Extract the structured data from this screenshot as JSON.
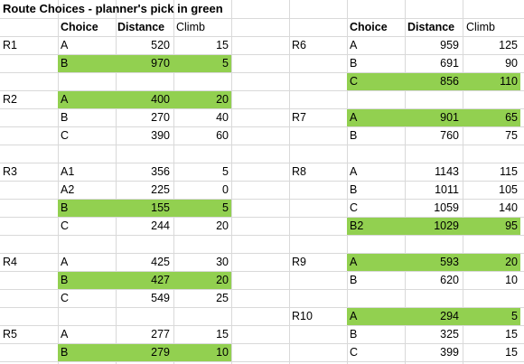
{
  "title": "Route Choices - planner's pick in green",
  "headers": {
    "choice": "Choice",
    "distance": "Distance",
    "climb": "Climb"
  },
  "highlight_color": "#92d050",
  "left_routes": [
    {
      "route": "R1",
      "rows": [
        {
          "choice": "A",
          "distance": "520",
          "climb": "15",
          "pick": false
        },
        {
          "choice": "B",
          "distance": "970",
          "climb": "5",
          "pick": true
        }
      ]
    },
    {
      "route": "R2",
      "rows": [
        {
          "choice": "A",
          "distance": "400",
          "climb": "20",
          "pick": true
        },
        {
          "choice": "B",
          "distance": "270",
          "climb": "40",
          "pick": false
        },
        {
          "choice": "C",
          "distance": "390",
          "climb": "60",
          "pick": false
        }
      ]
    },
    {
      "route": "R3",
      "rows": [
        {
          "choice": "A1",
          "distance": "356",
          "climb": "5",
          "pick": false
        },
        {
          "choice": "A2",
          "distance": "225",
          "climb": "0",
          "pick": false
        },
        {
          "choice": "B",
          "distance": "155",
          "climb": "5",
          "pick": true
        },
        {
          "choice": "C",
          "distance": "244",
          "climb": "20",
          "pick": false
        }
      ]
    },
    {
      "route": "R4",
      "rows": [
        {
          "choice": "A",
          "distance": "425",
          "climb": "30",
          "pick": false
        },
        {
          "choice": "B",
          "distance": "427",
          "climb": "20",
          "pick": true
        },
        {
          "choice": "C",
          "distance": "549",
          "climb": "25",
          "pick": false
        }
      ]
    },
    {
      "route": "R5",
      "rows": [
        {
          "choice": "A",
          "distance": "277",
          "climb": "15",
          "pick": false
        },
        {
          "choice": "B",
          "distance": "279",
          "climb": "10",
          "pick": true
        }
      ]
    }
  ],
  "right_routes": [
    {
      "route": "R6",
      "rows": [
        {
          "choice": "A",
          "distance": "959",
          "climb": "125",
          "pick": false
        },
        {
          "choice": "B",
          "distance": "691",
          "climb": "90",
          "pick": false
        },
        {
          "choice": "C",
          "distance": "856",
          "climb": "110",
          "pick": true
        }
      ]
    },
    {
      "route": "R7",
      "rows": [
        {
          "choice": "A",
          "distance": "901",
          "climb": "65",
          "pick": true
        },
        {
          "choice": "B",
          "distance": "760",
          "climb": "75",
          "pick": false
        }
      ]
    },
    {
      "route": "R8",
      "rows": [
        {
          "choice": "A",
          "distance": "1143",
          "climb": "115",
          "pick": false
        },
        {
          "choice": "B",
          "distance": "1011",
          "climb": "105",
          "pick": false
        },
        {
          "choice": "C",
          "distance": "1059",
          "climb": "140",
          "pick": false
        },
        {
          "choice": "B2",
          "distance": "1029",
          "climb": "95",
          "pick": true
        }
      ]
    },
    {
      "route": "R9",
      "rows": [
        {
          "choice": "A",
          "distance": "593",
          "climb": "20",
          "pick": true
        },
        {
          "choice": "B",
          "distance": "620",
          "climb": "10",
          "pick": false
        }
      ]
    },
    {
      "route": "R10",
      "rows": [
        {
          "choice": "A",
          "distance": "294",
          "climb": "5",
          "pick": true
        },
        {
          "choice": "B",
          "distance": "325",
          "climb": "15",
          "pick": false
        },
        {
          "choice": "C",
          "distance": "399",
          "climb": "15",
          "pick": false
        }
      ]
    }
  ]
}
